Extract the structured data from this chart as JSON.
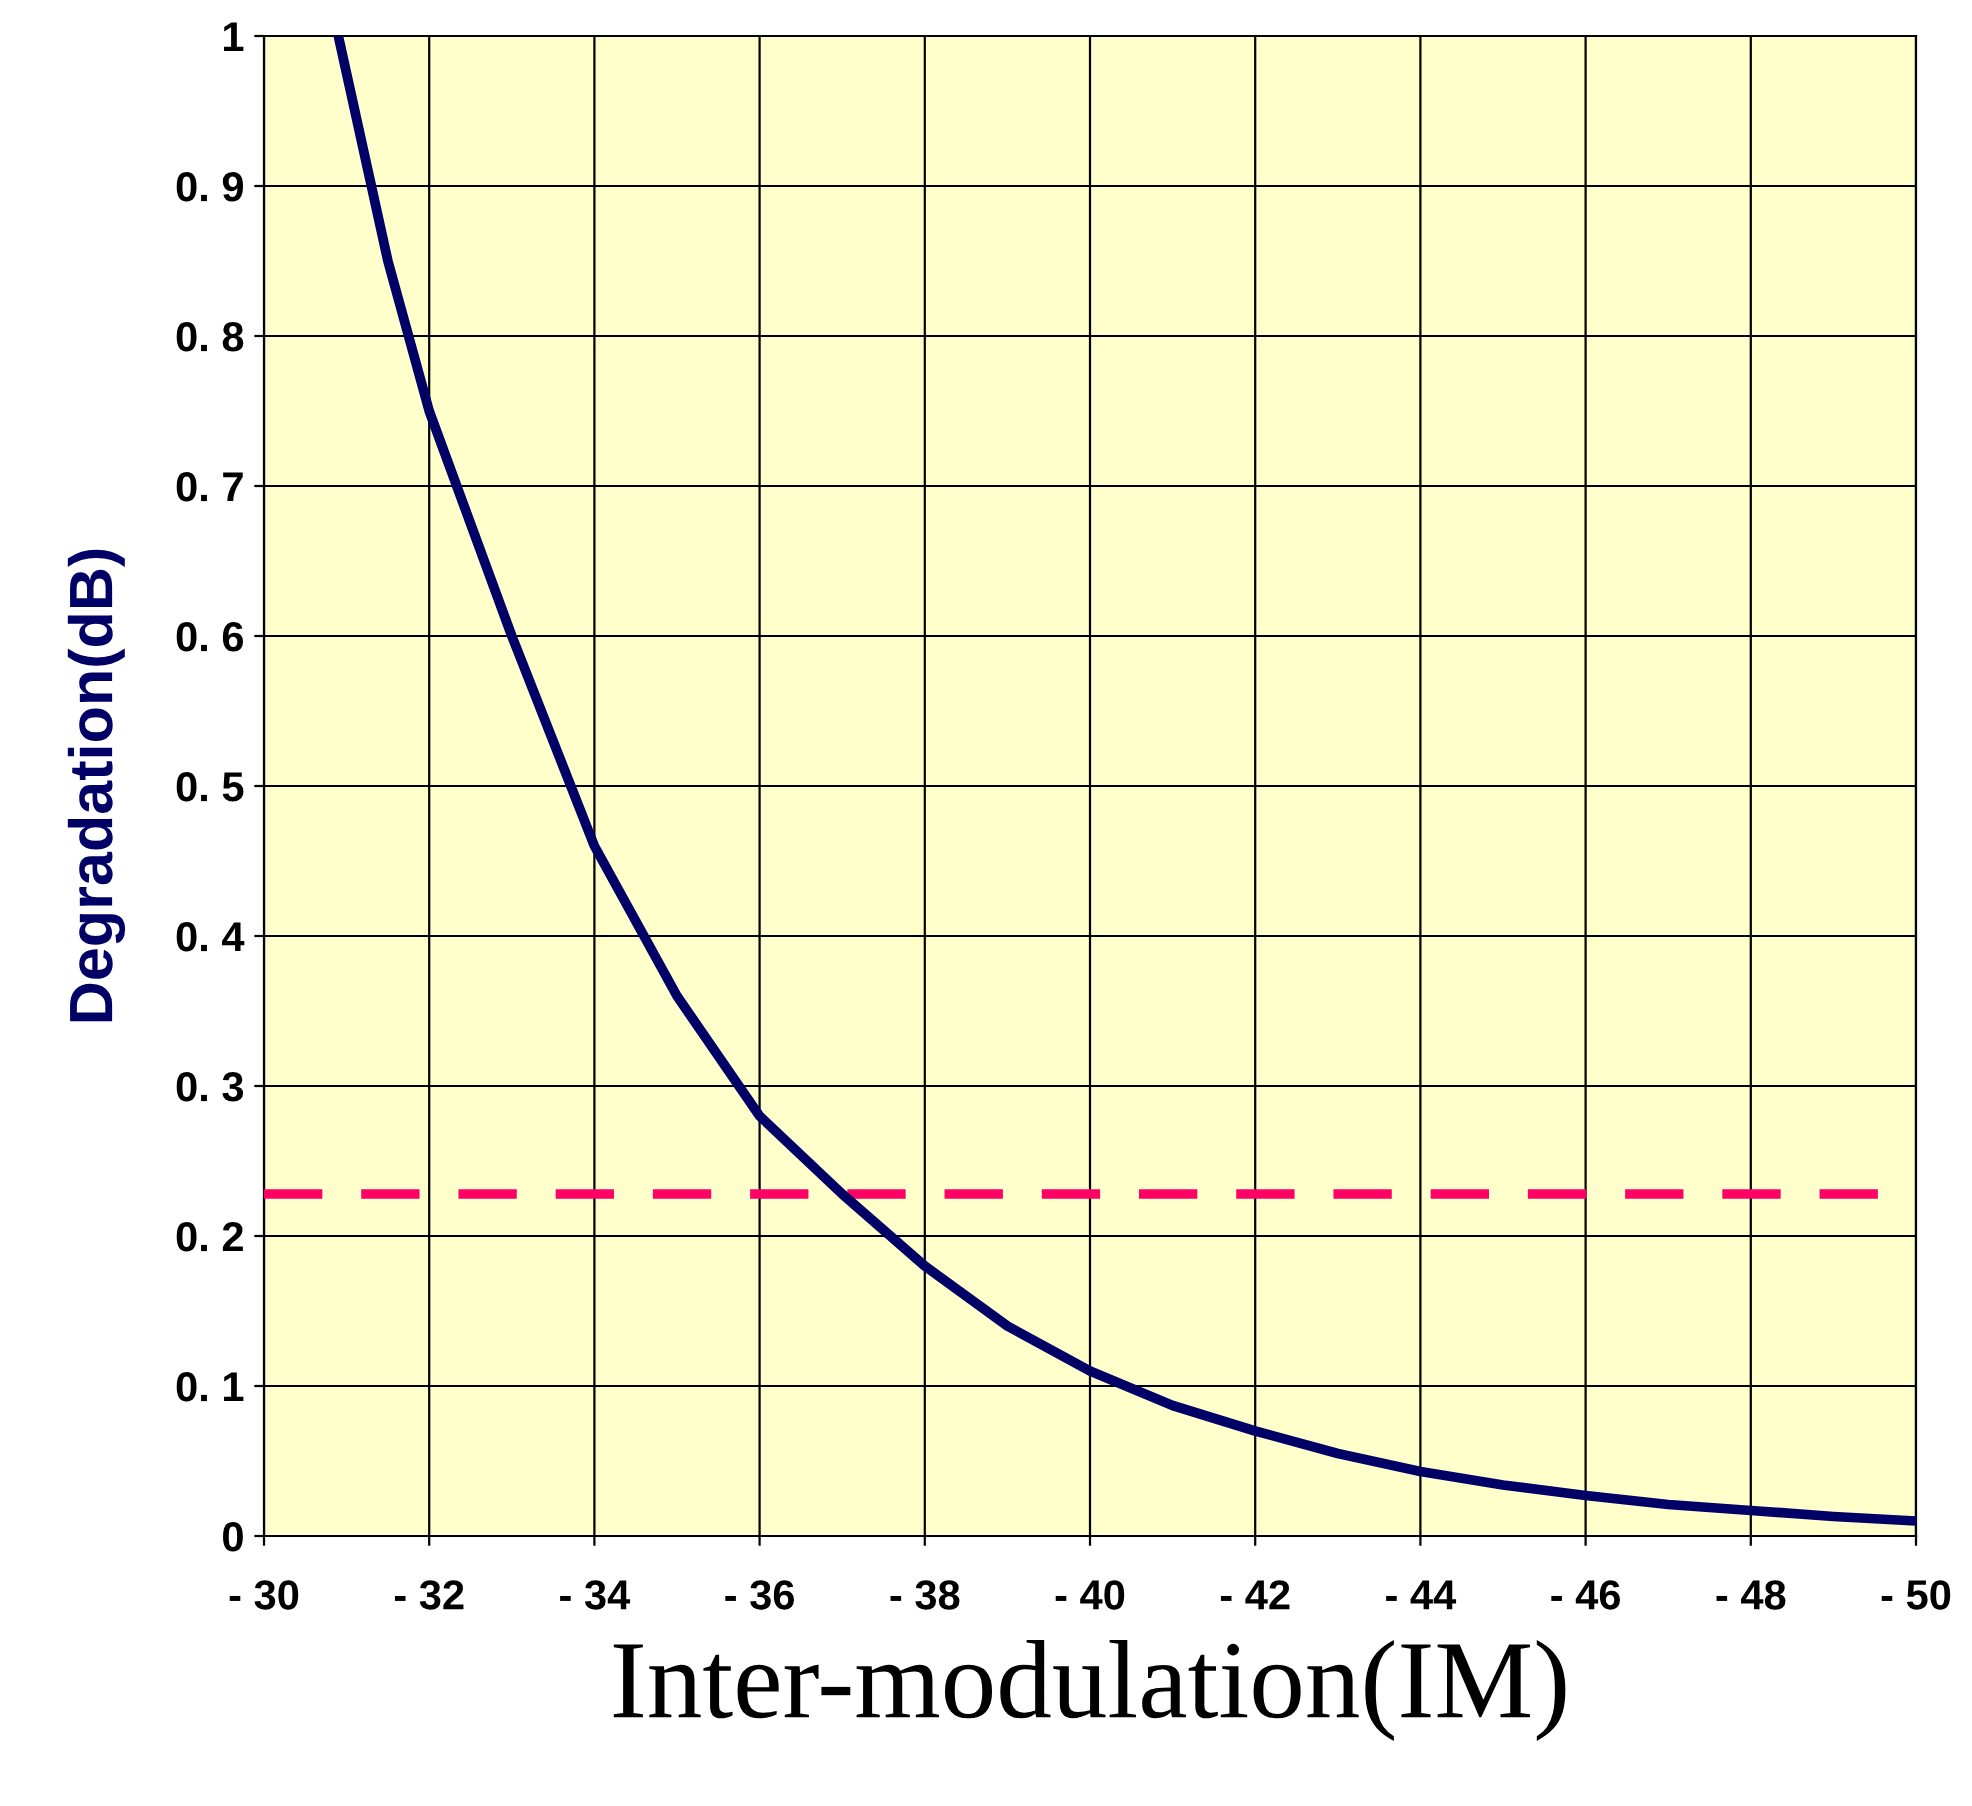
{
  "chart_data": {
    "type": "line",
    "xlabel": "Inter-modulation(IM)",
    "ylabel": "Degradation(dB)",
    "series": [
      {
        "color": "#000066",
        "x": [
          -30.9,
          -31.5,
          -32,
          -33,
          -34,
          -35,
          -36,
          -37,
          -38,
          -39,
          -40,
          -41,
          -42,
          -43,
          -44,
          -45,
          -46,
          -47,
          -48,
          -49,
          -50
        ],
        "values": [
          1.0,
          0.85,
          0.75,
          0.6,
          0.46,
          0.36,
          0.28,
          0.228,
          0.18,
          0.14,
          0.11,
          0.087,
          0.07,
          0.055,
          0.043,
          0.034,
          0.027,
          0.021,
          0.017,
          0.013,
          0.01
        ]
      }
    ],
    "xlim": [
      -30,
      -50
    ],
    "ylim": [
      0,
      1
    ],
    "xticks": [
      {
        "value": -30,
        "label": "- 30"
      },
      {
        "value": -32,
        "label": "- 32"
      },
      {
        "value": -34,
        "label": "- 34"
      },
      {
        "value": -36,
        "label": "- 36"
      },
      {
        "value": -38,
        "label": "- 38"
      },
      {
        "value": -40,
        "label": "- 40"
      },
      {
        "value": -42,
        "label": "- 42"
      },
      {
        "value": -44,
        "label": "- 44"
      },
      {
        "value": -46,
        "label": "- 46"
      },
      {
        "value": -48,
        "label": "- 48"
      },
      {
        "value": -50,
        "label": "- 50"
      }
    ],
    "yticks": [
      0,
      {
        "value": 0.1,
        "label": "0. 1"
      },
      {
        "value": 0.2,
        "label": "0. 2"
      },
      {
        "value": 0.3,
        "label": "0. 3"
      },
      {
        "value": 0.4,
        "label": "0. 4"
      },
      {
        "value": 0.5,
        "label": "0. 5"
      },
      {
        "value": 0.6,
        "label": "0. 6"
      },
      {
        "value": 0.7,
        "label": "0. 7"
      },
      {
        "value": 0.8,
        "label": "0. 8"
      },
      {
        "value": 0.9,
        "label": "0. 9"
      },
      1
    ],
    "ref_lines": [
      {
        "axis": "y",
        "value": 0.228,
        "color": "#ff0066",
        "line_style": "dashed"
      }
    ],
    "grid": true,
    "legend": false,
    "marker": "none",
    "line_style": "solid"
  }
}
